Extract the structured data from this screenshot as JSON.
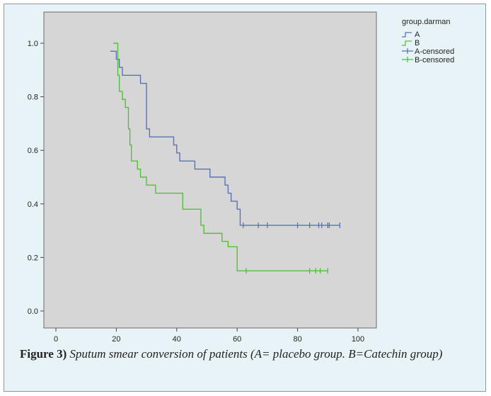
{
  "chart_data": {
    "type": "line",
    "chart_subtype": "kaplan-meier step",
    "xlim": [
      0,
      100
    ],
    "ylim": [
      0,
      1
    ],
    "x_ticks": [
      "0",
      "20",
      "40",
      "60",
      "80",
      "100"
    ],
    "y_ticks": [
      "0.0",
      "0.2",
      "0.4",
      "0.6",
      "0.8",
      "1.0"
    ],
    "grid": false,
    "legend": {
      "title": "group.darman",
      "position": "top-right",
      "entries": [
        "A",
        "B",
        "A-censored",
        "B-censored"
      ]
    },
    "series": [
      {
        "name": "A",
        "color": "#5b72b8",
        "steps": [
          [
            18,
            0.97
          ],
          [
            20,
            0.94
          ],
          [
            21,
            0.91
          ],
          [
            22,
            0.88
          ],
          [
            25,
            0.88
          ],
          [
            25,
            0.88
          ],
          [
            27,
            0.88
          ],
          [
            28,
            0.85
          ],
          [
            30,
            0.85
          ],
          [
            30,
            0.68
          ],
          [
            31,
            0.65
          ],
          [
            38,
            0.65
          ],
          [
            39,
            0.62
          ],
          [
            40,
            0.59
          ],
          [
            41,
            0.56
          ],
          [
            44,
            0.56
          ],
          [
            46,
            0.53
          ],
          [
            50,
            0.53
          ],
          [
            51,
            0.5
          ],
          [
            55,
            0.5
          ],
          [
            56,
            0.47
          ],
          [
            57,
            0.44
          ],
          [
            58,
            0.41
          ],
          [
            60,
            0.38
          ],
          [
            61,
            0.32
          ],
          [
            94,
            0.32
          ]
        ],
        "censored_x": [
          62,
          67,
          70,
          80,
          84,
          87,
          88,
          90,
          90.5,
          94
        ]
      },
      {
        "name": "B",
        "color": "#55bf3b",
        "steps": [
          [
            19,
            1.0
          ],
          [
            20.5,
            1.0
          ],
          [
            20.5,
            0.88
          ],
          [
            21,
            0.82
          ],
          [
            22,
            0.79
          ],
          [
            23,
            0.76
          ],
          [
            24,
            0.68
          ],
          [
            24.5,
            0.62
          ],
          [
            25,
            0.56
          ],
          [
            26,
            0.56
          ],
          [
            27,
            0.53
          ],
          [
            28,
            0.5
          ],
          [
            30,
            0.47
          ],
          [
            33,
            0.47
          ],
          [
            33,
            0.44
          ],
          [
            42,
            0.44
          ],
          [
            42,
            0.38
          ],
          [
            48,
            0.38
          ],
          [
            48,
            0.32
          ],
          [
            49,
            0.29
          ],
          [
            55,
            0.29
          ],
          [
            55,
            0.26
          ],
          [
            57,
            0.24
          ],
          [
            59,
            0.24
          ],
          [
            60,
            0.15
          ],
          [
            90,
            0.15
          ]
        ],
        "censored_x": [
          63,
          84,
          86,
          87.5,
          90
        ]
      }
    ]
  },
  "caption": {
    "label": "Figure 3)",
    "text": " Sputum smear conversion of patients (A= placebo group. B=Catechin group)"
  }
}
